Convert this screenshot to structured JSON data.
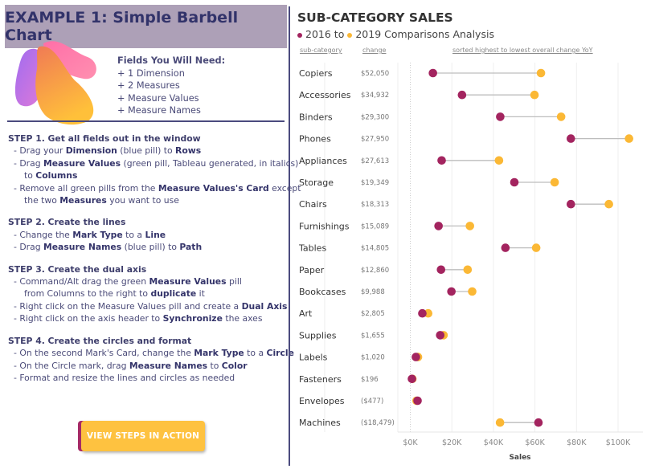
{
  "left": {
    "title": "EXAMPLE 1: Simple Barbell Chart",
    "fields_heading": "Fields You Will Need:",
    "fields": [
      "+ 1 Dimension",
      "+ 2 Measures",
      "+ Measure Values",
      "+ Measure Names"
    ],
    "steps": [
      {
        "heading": "STEP 1. Get all fields out in the window",
        "lines": [
          {
            "indent": false,
            "segs": [
              [
                "- Drag your ",
                false
              ],
              [
                "Dimension",
                true
              ],
              [
                " (blue pill) to ",
                false
              ],
              [
                "Rows",
                true
              ]
            ]
          },
          {
            "indent": false,
            "segs": [
              [
                "- Drag ",
                false
              ],
              [
                "Measure Values",
                true
              ],
              [
                " (green pill, Tableau generated, in italics)",
                false
              ]
            ]
          },
          {
            "indent": true,
            "segs": [
              [
                "to ",
                false
              ],
              [
                "Columns",
                true
              ]
            ]
          },
          {
            "indent": false,
            "segs": [
              [
                "- Remove all green pills from the ",
                false
              ],
              [
                "Measure Values's Card",
                true
              ],
              [
                " except",
                false
              ]
            ]
          },
          {
            "indent": true,
            "segs": [
              [
                "the two ",
                false
              ],
              [
                "Measures",
                true
              ],
              [
                " you want to use",
                false
              ]
            ]
          }
        ]
      },
      {
        "heading": "STEP 2. Create the lines",
        "lines": [
          {
            "indent": false,
            "segs": [
              [
                "- Change the ",
                false
              ],
              [
                "Mark Type",
                true
              ],
              [
                " to a ",
                false
              ],
              [
                "Line",
                true
              ]
            ]
          },
          {
            "indent": false,
            "segs": [
              [
                "- Drag ",
                false
              ],
              [
                "Measure Names",
                true
              ],
              [
                " (blue pill) to ",
                false
              ],
              [
                "Path",
                true
              ]
            ]
          }
        ]
      },
      {
        "heading": "STEP 3. Create the dual axis",
        "lines": [
          {
            "indent": false,
            "segs": [
              [
                "- Command/Alt drag the green ",
                false
              ],
              [
                "Measure Values",
                true
              ],
              [
                " pill",
                false
              ]
            ]
          },
          {
            "indent": true,
            "segs": [
              [
                "from Columns to the right to ",
                false
              ],
              [
                "duplicate",
                true
              ],
              [
                " it",
                false
              ]
            ]
          },
          {
            "indent": false,
            "segs": [
              [
                "- Right click on the Measure Values pill and create a ",
                false
              ],
              [
                "Dual Axis",
                true
              ]
            ]
          },
          {
            "indent": false,
            "segs": [
              [
                "- Right click on the axis header to ",
                false
              ],
              [
                "Synchronize",
                true
              ],
              [
                " the axes",
                false
              ]
            ]
          }
        ]
      },
      {
        "heading": "STEP 4. Create the circles and format",
        "lines": [
          {
            "indent": false,
            "segs": [
              [
                "- On the second Mark's Card, change the ",
                false
              ],
              [
                "Mark Type",
                true
              ],
              [
                " to a ",
                false
              ],
              [
                "Circle",
                true
              ]
            ]
          },
          {
            "indent": false,
            "segs": [
              [
                "- On the Circle mark, drag ",
                false
              ],
              [
                "Measure Names",
                true
              ],
              [
                " to ",
                false
              ],
              [
                "Color",
                true
              ]
            ]
          },
          {
            "indent": false,
            "segs": [
              [
                "- Format and resize the lines and circles as needed",
                false
              ]
            ]
          }
        ]
      }
    ],
    "button_label": "VIEW STEPS IN ACTION"
  },
  "chart_data": {
    "type": "barbell",
    "title": "SUB-CATEGORY SALES",
    "subtitle_a": "2016",
    "subtitle_to": "to",
    "subtitle_b": "2019 Comparisons Analysis",
    "col_headers": {
      "category": "sub-category",
      "change": "change",
      "sort_note": "sorted highest to lowest overall change YoY"
    },
    "xlabel": "Sales",
    "xlim": [
      -6,
      112
    ],
    "xticks": [
      0,
      20,
      40,
      60,
      80,
      100
    ],
    "xtick_labels": [
      "$0K",
      "$20K",
      "$40K",
      "$60K",
      "$80K",
      "$100K"
    ],
    "grid": true,
    "colors": {
      "2016": "#a3245f",
      "2019": "#fbb835",
      "line": "#bdbdbd"
    },
    "series": [
      {
        "name": "2016"
      },
      {
        "name": "2019"
      }
    ],
    "rows": [
      {
        "category": "Copiers",
        "change": "$52,050",
        "v2016": 10.9,
        "v2019": 62.9
      },
      {
        "category": "Accessories",
        "change": "$34,932",
        "v2016": 24.9,
        "v2019": 59.8
      },
      {
        "category": "Binders",
        "change": "$29,300",
        "v2016": 43.3,
        "v2019": 72.6
      },
      {
        "category": "Phones",
        "change": "$27,950",
        "v2016": 77.3,
        "v2019": 105.3
      },
      {
        "category": "Appliances",
        "change": "$27,613",
        "v2016": 15.1,
        "v2019": 42.7
      },
      {
        "category": "Storage",
        "change": "$19,349",
        "v2016": 50.1,
        "v2019": 69.5
      },
      {
        "category": "Chairs",
        "change": "$18,313",
        "v2016": 77.3,
        "v2019": 95.6
      },
      {
        "category": "Furnishings",
        "change": "$15,089",
        "v2016": 13.6,
        "v2019": 28.7
      },
      {
        "category": "Tables",
        "change": "$14,805",
        "v2016": 45.8,
        "v2019": 60.6
      },
      {
        "category": "Paper",
        "change": "$12,860",
        "v2016": 14.8,
        "v2019": 27.6
      },
      {
        "category": "Bookcases",
        "change": "$9,988",
        "v2016": 19.8,
        "v2019": 29.8
      },
      {
        "category": "Art",
        "change": "$2,805",
        "v2016": 5.8,
        "v2019": 8.6
      },
      {
        "category": "Supplies",
        "change": "$1,655",
        "v2016": 14.4,
        "v2019": 16.0
      },
      {
        "category": "Labels",
        "change": "$1,020",
        "v2016": 2.7,
        "v2019": 3.7
      },
      {
        "category": "Fasteners",
        "change": "$196",
        "v2016": 0.8,
        "v2019": 1.0
      },
      {
        "category": "Envelopes",
        "change": "($477)",
        "v2016": 3.5,
        "v2019": 3.0
      },
      {
        "category": "Machines",
        "change": "($18,479)",
        "v2016": 61.7,
        "v2019": 43.2
      }
    ]
  }
}
